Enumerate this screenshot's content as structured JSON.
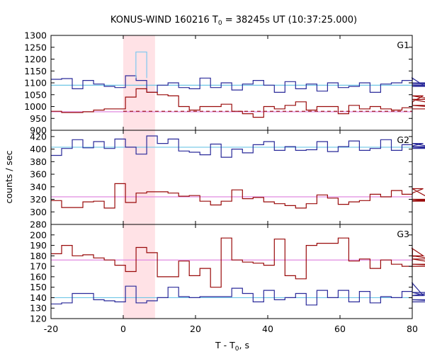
{
  "chart_data": {
    "type": "line",
    "title": "KONUS-WIND 160216 T",
    "title_sub": "0",
    "title_rest": " = 38245s UT (10:37:25.000)",
    "xlabel": "T - T",
    "xlabel_sub": "0",
    "xlabel_rest": ", s",
    "ylabel": "counts / sec",
    "xlim": [
      -20,
      80
    ],
    "x_ticks": [
      -20,
      0,
      20,
      40,
      60,
      80
    ],
    "x_tick_labels": [
      "-20",
      "0",
      "20",
      "40",
      "60",
      "80"
    ],
    "shaded_interval": [
      0,
      8.8
    ],
    "bin_width": 2.944,
    "colors": {
      "g_series": "#2a2a9a",
      "red_series": "#990a0a",
      "bg_cyan": "#6ec6e6",
      "bg_pink": "#e08ae0",
      "inset": "#7ec8f0",
      "shade": "#ffe2e6"
    },
    "panels": [
      {
        "name": "G1",
        "ylim": [
          900,
          1300
        ],
        "y_ticks": [
          900,
          950,
          1000,
          1050,
          1100,
          1150,
          1200,
          1250,
          1300
        ],
        "y_tick_labels": [
          "900",
          "950",
          "1000",
          "1050",
          "1100",
          "1150",
          "1200",
          "1250",
          "1300"
        ],
        "series": [
          {
            "name": "G1 count rate",
            "values": [
              1115,
              1118,
              1075,
              1110,
              1095,
              1085,
              1080,
              1130,
              1110,
              1060,
              1090,
              1100,
              1080,
              1075,
              1120,
              1080,
              1100,
              1070,
              1095,
              1110,
              1090,
              1060,
              1105,
              1075,
              1095,
              1065,
              1100,
              1080,
              1085,
              1100,
              1060,
              1095,
              1100,
              1110,
              1120,
              1090,
              1085,
              1100,
              1095
            ]
          },
          {
            "name": "G1 soft rate",
            "values": [
              980,
              975,
              975,
              978,
              985,
              990,
              990,
              1040,
              1075,
              1060,
              1050,
              1045,
              1000,
              985,
              1000,
              1000,
              1010,
              980,
              970,
              955,
              1000,
              990,
              1005,
              1020,
              985,
              1000,
              1000,
              970,
              1005,
              990,
              1000,
              990,
              985,
              995,
              1020,
              1045,
              1030,
              1005,
              990
            ]
          },
          {
            "name": "G1 inset rate",
            "x": [
              3.5,
              6.5
            ],
            "values": [
              1230
            ]
          }
        ],
        "backgrounds": [
          1090,
          978
        ],
        "background_dashed": 980
      },
      {
        "name": "G2",
        "ylim": [
          280,
          430
        ],
        "y_ticks": [
          280,
          300,
          320,
          340,
          360,
          380,
          400,
          420
        ],
        "y_tick_labels": [
          "280",
          "300",
          "320",
          "340",
          "360",
          "380",
          "400",
          "420"
        ],
        "series": [
          {
            "name": "G2 count rate",
            "values": [
              390,
              401,
              415,
              402,
              412,
              401,
              416,
              403,
              392,
              421,
              409,
              416,
              397,
              395,
              391,
              408,
              387,
              400,
              394,
              407,
              412,
              398,
              404,
              398,
              399,
              412,
              396,
              404,
              413,
              398,
              401,
              415,
              398,
              407,
              405,
              409,
              403,
              401,
              404
            ]
          },
          {
            "name": "G2 soft rate",
            "values": [
              318,
              307,
              307,
              316,
              317,
              306,
              345,
              315,
              330,
              332,
              332,
              330,
              325,
              326,
              317,
              311,
              317,
              335,
              321,
              323,
              316,
              313,
              310,
              306,
              313,
              327,
              322,
              312,
              316,
              318,
              328,
              324,
              334,
              328,
              330,
              337,
              318,
              320,
              317
            ]
          }
        ],
        "backgrounds": [
          403,
          324
        ]
      },
      {
        "name": "G3",
        "ylim": [
          120,
          210
        ],
        "y_ticks": [
          120,
          130,
          140,
          150,
          160,
          170,
          180,
          190,
          200
        ],
        "y_tick_labels": [
          "120",
          "130",
          "140",
          "150",
          "160",
          "170",
          "180",
          "190",
          "200"
        ],
        "series": [
          {
            "name": "G3 count rate",
            "values": [
              134,
              135,
              144,
              144,
              138,
              137,
              136,
              151,
              135,
              137,
              140,
              150,
              141,
              140,
              141,
              141,
              141,
              149,
              144,
              136,
              147,
              138,
              140,
              144,
              133,
              147,
              140,
              147,
              136,
              146,
              135,
              141,
              140,
              146,
              154,
              142,
              145,
              138,
              136
            ]
          },
          {
            "name": "G3 soft rate",
            "values": [
              182,
              190,
              180,
              181,
              178,
              176,
              171,
              165,
              188,
              183,
              160,
              160,
              175,
              161,
              168,
              150,
              197,
              176,
              174,
              173,
              171,
              196,
              161,
              158,
              190,
              192,
              192,
              197,
              175,
              177,
              168,
              176,
              172,
              170,
              187,
              180,
              177,
              172,
              170
            ]
          }
        ],
        "backgrounds": [
          140,
          176
        ]
      }
    ]
  }
}
